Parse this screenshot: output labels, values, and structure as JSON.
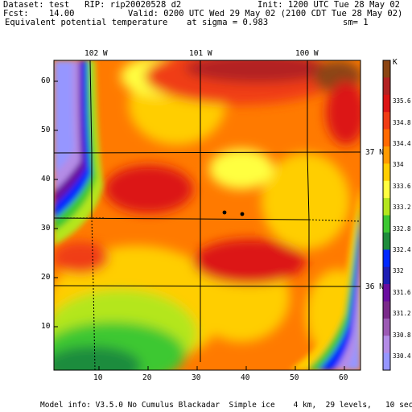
{
  "header": {
    "line1_left": "Dataset: test   RIP: rip20020528 d2",
    "line1_right": "Init: 1200 UTC Tue 28 May 02",
    "line2_left": "Fcst:    14.00",
    "line2_right": "Valid: 0200 UTC Wed 29 May 02 (2100 CDT Tue 28 May 02)",
    "line3_left": "Equivalent potential temperature",
    "line3_mid": "at sigma = 0.983",
    "line3_right": "sm= 1"
  },
  "map": {
    "lon_labels": [
      "102 W",
      "101 W",
      "100 W"
    ],
    "lat_labels": [
      "37 N",
      "36 N"
    ],
    "y_ticks": [
      "60",
      "50",
      "40",
      "30",
      "20",
      "10"
    ],
    "x_ticks": [
      "10",
      "20",
      "30",
      "40",
      "50",
      "60"
    ]
  },
  "colorbar": {
    "unit": "K",
    "labels": [
      "335.6",
      "334.8",
      "334.4",
      "334",
      "333.6",
      "333.2",
      "332.8",
      "332.4",
      "332",
      "331.6",
      "331.2",
      "330.8",
      "330.4"
    ],
    "colors": [
      "#8b4513",
      "#b22222",
      "#dc1414",
      "#f03c14",
      "#ff6a00",
      "#ff9a00",
      "#ffce00",
      "#ffff40",
      "#b4e61e",
      "#3cc832",
      "#1e8c3c",
      "#0028ff",
      "#1e1eb4",
      "#6a0da0",
      "#7a2a8a",
      "#9c5ab4",
      "#b48ce6",
      "#9696ff"
    ]
  },
  "footer": {
    "model_info": "Model info: V3.5.0 No Cumulus Blackadar  Simple ice    4 km,  29 levels,   10 sec"
  }
}
